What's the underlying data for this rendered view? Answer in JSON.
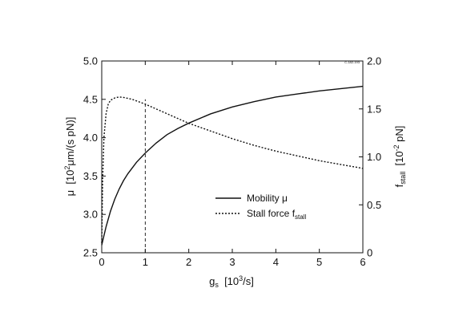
{
  "chart_data": {
    "type": "line",
    "corner_code": "C-182-193",
    "xlabel": {
      "base": "g",
      "sub": "s",
      "pre": "  [10",
      "sup": "3",
      "post": "/s]"
    },
    "ylabel_left": {
      "pre": "μ  [10",
      "sup": "2",
      "post": "μm/(s pN)]"
    },
    "ylabel_right": {
      "base": "f",
      "sub": "stall",
      "pre": "  [10",
      "sup": "-2",
      "post": " pN]"
    },
    "xlim": [
      0,
      6
    ],
    "ylim_left": [
      2.5,
      5.0
    ],
    "ylim_right": [
      0,
      2.0
    ],
    "x_ticks": [
      "0",
      "1",
      "2",
      "3",
      "4",
      "5",
      "6"
    ],
    "x_tick_values": [
      0,
      1,
      2,
      3,
      4,
      5,
      6
    ],
    "y_ticks_left": [
      "2.5",
      "3.0",
      "3.5",
      "4.0",
      "4.5",
      "5.0"
    ],
    "y_tick_values_left": [
      2.5,
      3.0,
      3.5,
      4.0,
      4.5,
      5.0
    ],
    "y_ticks_right": [
      "0",
      "0.5",
      "1.0",
      "1.5",
      "2.0"
    ],
    "y_tick_values_right": [
      0,
      0.5,
      1.0,
      1.5,
      2.0
    ],
    "grid": false,
    "legend_position": "center-right",
    "reference_line": {
      "x": 1,
      "axis": "left",
      "y_from": 2.5,
      "y_to": 4.5,
      "style": "dashed"
    },
    "series": [
      {
        "name": "Mobility μ",
        "label": {
          "text": "Mobility μ"
        },
        "axis": "left",
        "style": "solid",
        "x": [
          0,
          0.05,
          0.1,
          0.2,
          0.3,
          0.4,
          0.5,
          0.6,
          0.8,
          1.0,
          1.25,
          1.5,
          1.75,
          2.0,
          2.5,
          3.0,
          3.5,
          4.0,
          4.5,
          5.0,
          5.5,
          6.0
        ],
        "y": [
          2.6,
          2.72,
          2.84,
          3.04,
          3.2,
          3.33,
          3.44,
          3.53,
          3.68,
          3.8,
          3.93,
          4.04,
          4.12,
          4.19,
          4.31,
          4.4,
          4.47,
          4.53,
          4.57,
          4.61,
          4.64,
          4.67
        ]
      },
      {
        "name": "Stall force fstall",
        "label": {
          "text": "Stall force f",
          "sub": "stall"
        },
        "axis": "right",
        "style": "dotted",
        "x": [
          0,
          0.02,
          0.05,
          0.1,
          0.15,
          0.2,
          0.3,
          0.4,
          0.5,
          0.7,
          1.0,
          1.5,
          2.0,
          2.5,
          3.0,
          3.5,
          4.0,
          4.5,
          5.0,
          5.5,
          6.0
        ],
        "y": [
          0.1,
          0.75,
          1.2,
          1.45,
          1.55,
          1.59,
          1.615,
          1.625,
          1.62,
          1.6,
          1.55,
          1.45,
          1.35,
          1.27,
          1.19,
          1.12,
          1.06,
          1.01,
          0.96,
          0.92,
          0.88
        ]
      }
    ]
  }
}
